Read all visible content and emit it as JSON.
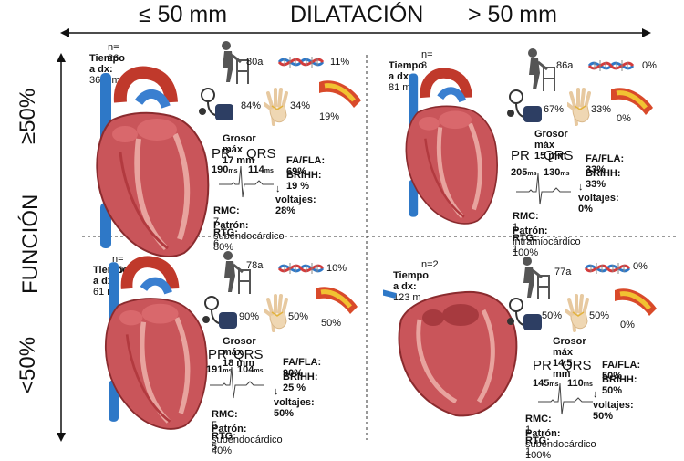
{
  "header": {
    "left": "≤ 50 mm",
    "center": "DILATACIÓN",
    "right": "> 50 mm"
  },
  "axis": {
    "function_label": "FUNCIÓN",
    "top": "≥50%",
    "bottom": "<50%"
  },
  "labels": {
    "time": "Tiempo a dx:",
    "grosor": "Grosor máx",
    "pr": "PR",
    "qrs": "QRS",
    "ms": "ms",
    "fa": "FA/FLA:",
    "brihh": "BRIHH:",
    "volt": "↓ voltajes:",
    "rmc": "RMC:",
    "rtg": "RTG:",
    "patron": "Patrón:"
  },
  "panels": [
    {
      "n": "n= 26",
      "time": "36.6 m",
      "age": "80a",
      "genetic": "11%",
      "bp": "84%",
      "hand": "34%",
      "vessel": "19%",
      "grosor": "17 mm",
      "pr": "190",
      "qrs": "114",
      "fa": "69%",
      "brihh": "19 %",
      "volt": "28%",
      "rmc": "7",
      "rtg": "6",
      "patron": "subendocárdico 80%"
    },
    {
      "n": "n= 3",
      "time": "81 m",
      "age": "86a",
      "genetic": "0%",
      "bp": "67%",
      "hand": "33%",
      "vessel": "0%",
      "grosor": "15 mm",
      "pr": "205",
      "qrs": "130",
      "fa": "33%",
      "brihh": "33%",
      "volt": "0%",
      "rmc": "1",
      "rtg": "1",
      "patron": "intramiocárdico 100%"
    },
    {
      "n": "n= 10",
      "time": "61 m",
      "age": "78a",
      "genetic": "10%",
      "bp": "90%",
      "hand": "50%",
      "vessel": "50%",
      "grosor": "18 mm",
      "pr": "191",
      "qrs": "104",
      "fa": "90%",
      "brihh": "25 %",
      "volt": "50%",
      "rmc": "5",
      "rtg": "5",
      "patron": "subendocárdico 40%"
    },
    {
      "n": "n=2",
      "time": "123 m",
      "age": "77a",
      "genetic": "0%",
      "bp": "50%",
      "hand": "50%",
      "vessel": "0%",
      "grosor": "14.5 mm",
      "pr": "145",
      "qrs": "110",
      "fa": "50%",
      "brihh": "50%",
      "volt": "50%",
      "rmc": "1",
      "rtg": "1",
      "patron": "subendocárdico 100%"
    }
  ]
}
